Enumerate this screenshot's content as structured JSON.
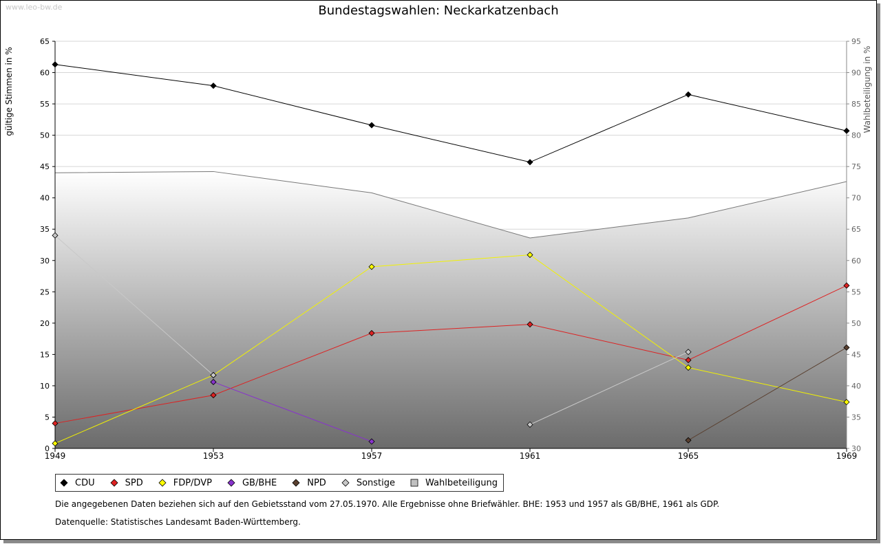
{
  "watermark": "www.leo-bw.de",
  "footnote": "Die angegebenen Daten beziehen sich auf den Gebietsstand vom 27.05.1970. Alle Ergebnisse ohne Briefwähler. BHE: 1953 und 1957 als GB/BHE, 1961 als GDP.",
  "source": "Datenquelle: Statistisches Landesamt Baden-Württemberg.",
  "chart_data": {
    "type": "line",
    "title": "Bundestagswahlen: Neckarkatzenbach",
    "xlabel": "",
    "ylabel": "gültige Stimmen in %",
    "y2label": "Wahlbeteiligung in %",
    "ylim": [
      0,
      65
    ],
    "y2lim": [
      30,
      95
    ],
    "yticks": [
      0,
      5,
      10,
      15,
      20,
      25,
      30,
      35,
      40,
      45,
      50,
      55,
      60,
      65
    ],
    "y2ticks": [
      30,
      35,
      40,
      45,
      50,
      55,
      60,
      65,
      70,
      75,
      80,
      85,
      90,
      95
    ],
    "categories": [
      "1949",
      "1953",
      "1957",
      "1961",
      "1965",
      "1969"
    ],
    "series": [
      {
        "name": "CDU",
        "color": "#000000",
        "line": "#000000",
        "values": [
          61.3,
          57.9,
          51.6,
          45.7,
          56.5,
          50.7
        ]
      },
      {
        "name": "SPD",
        "color": "#dd2222",
        "line": "#dd2222",
        "values": [
          4.0,
          8.5,
          18.4,
          19.8,
          14.1,
          26.0
        ]
      },
      {
        "name": "FDP/DVP",
        "color": "#ffff00",
        "line": "#f2f200",
        "values": [
          0.8,
          11.7,
          29.0,
          30.9,
          12.9,
          7.4
        ]
      },
      {
        "name": "GB/BHE",
        "color": "#8833cc",
        "line": "#8833cc",
        "values": [
          null,
          10.6,
          1.1,
          null,
          null,
          null
        ]
      },
      {
        "name": "NPD",
        "color": "#5a4030",
        "line": "#5a4030",
        "values": [
          null,
          null,
          null,
          null,
          1.3,
          16.1
        ]
      },
      {
        "name": "Sonstige",
        "color": "#c8c8c8",
        "line": "#c8c8c8",
        "values": [
          34.0,
          11.7,
          null,
          3.8,
          15.4,
          null
        ]
      }
    ],
    "turnout": {
      "name": "Wahlbeteiligung",
      "color": "#c0c0c0",
      "line": "#777777",
      "values": [
        74.0,
        74.2,
        70.8,
        63.6,
        66.8,
        72.6
      ]
    }
  }
}
